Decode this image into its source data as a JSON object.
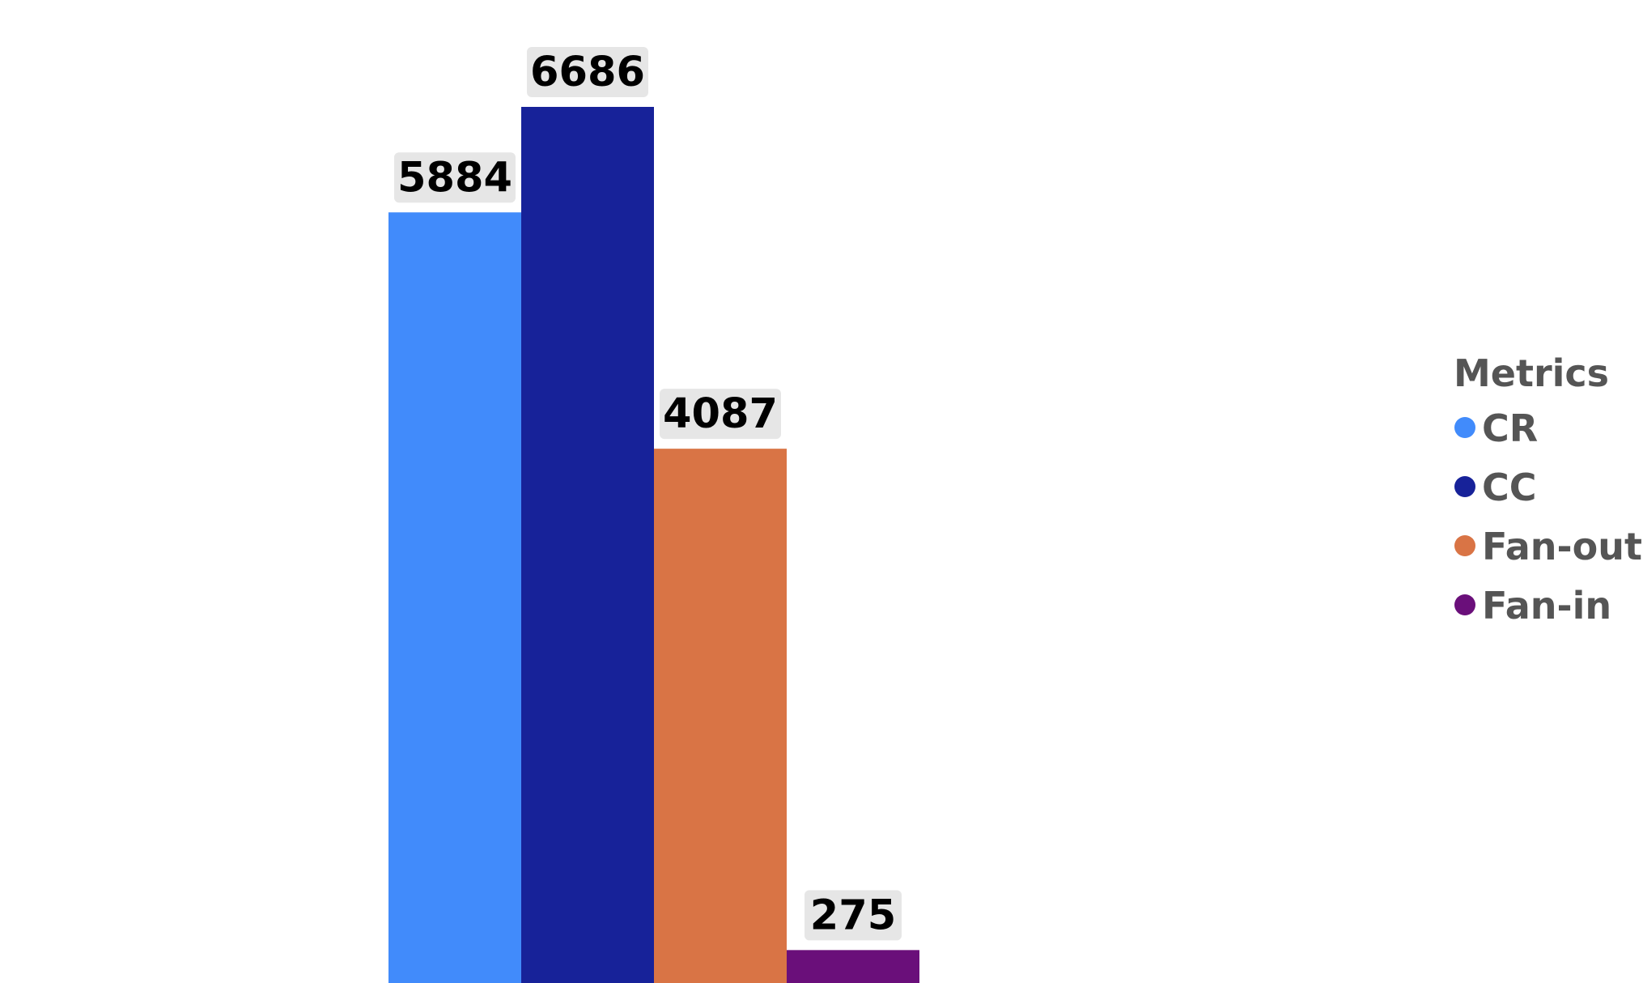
{
  "chart_data": {
    "type": "bar",
    "categories": [
      "CR",
      "CC",
      "Fan-out",
      "Fan-in"
    ],
    "values": [
      5884,
      6686,
      4087,
      275
    ],
    "colors": [
      "#418bfb",
      "#172299",
      "#d97445",
      "#6a0f7a"
    ],
    "title": "",
    "xlabel": "",
    "ylabel": "",
    "ylim": [
      0,
      6686
    ],
    "grid": false,
    "data_labels": [
      "5884",
      "6686",
      "4087",
      "275"
    ],
    "data_label_background": "#e6e6e6",
    "legend": {
      "title": "Metrics",
      "placement": "right",
      "entries": [
        "CR",
        "CC",
        "Fan-out",
        "Fan-in"
      ]
    }
  }
}
